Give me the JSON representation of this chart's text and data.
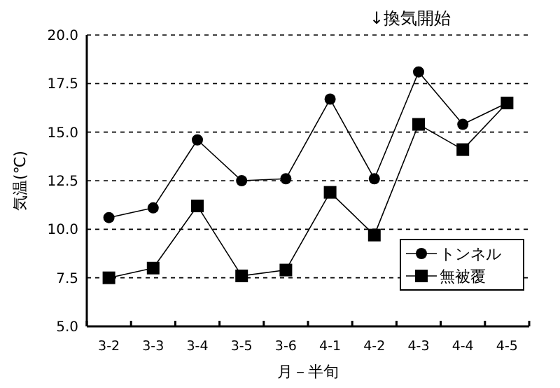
{
  "chart_data": {
    "type": "line",
    "xlabel": "月－半旬",
    "ylabel": "気温(℃)",
    "categories": [
      "3-2",
      "3-3",
      "3-4",
      "3-5",
      "3-6",
      "4-1",
      "4-2",
      "4-3",
      "4-4",
      "4-5"
    ],
    "series": [
      {
        "name": "トンネル",
        "color": "#000000",
        "marker": "circle",
        "values": [
          10.6,
          11.1,
          14.6,
          12.5,
          12.6,
          16.7,
          12.6,
          18.1,
          15.4,
          16.5
        ]
      },
      {
        "name": "無被覆",
        "color": "#000000",
        "marker": "square",
        "values": [
          7.5,
          8.0,
          11.2,
          7.6,
          7.9,
          11.9,
          9.7,
          15.4,
          14.1,
          16.5
        ]
      }
    ],
    "ylim": [
      5,
      20
    ],
    "yticks": [
      {
        "value": 5,
        "label": "5.0"
      },
      {
        "value": 7.5,
        "label": "7.5"
      },
      {
        "value": 10,
        "label": "10.0"
      },
      {
        "value": 12.5,
        "label": "12.5"
      },
      {
        "value": 15,
        "label": "15.0"
      },
      {
        "value": 17.5,
        "label": "17.5"
      },
      {
        "value": 20,
        "label": "20.0"
      }
    ],
    "grid": "y",
    "legend": "bottom right",
    "line_style": "solid",
    "annotations": [
      "↓換気開始"
    ]
  }
}
